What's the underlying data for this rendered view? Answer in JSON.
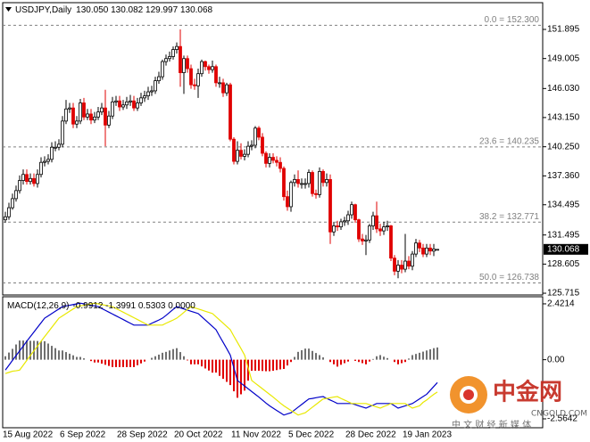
{
  "chart_data": [
    {
      "type": "candlestick",
      "title": "USDJPY,Daily",
      "header_values": "130.050 130.082 129.997 130.068",
      "categories": [
        "15 Aug 2022",
        null,
        null,
        null,
        null,
        null,
        null,
        null,
        null,
        null,
        null,
        null,
        null,
        null,
        null,
        null,
        "6 Sep 2022",
        null,
        null,
        null,
        null,
        null,
        null,
        null,
        null,
        null,
        null,
        null,
        null,
        null,
        null,
        null,
        "28 Sep 2022",
        null,
        null,
        null,
        null,
        null,
        null,
        null,
        null,
        null,
        null,
        null,
        null,
        null,
        null,
        null,
        "20 Oct 2022",
        null,
        null,
        null,
        null,
        null,
        null,
        null,
        null,
        null,
        null,
        null,
        null,
        null,
        null,
        null,
        "11 Nov 2022",
        null,
        null,
        null,
        null,
        null,
        null,
        null,
        null,
        null,
        null,
        null,
        null,
        null,
        null,
        null,
        "5 Dec 2022",
        null,
        null,
        null,
        null,
        null,
        null,
        null,
        null,
        null,
        null,
        null,
        null,
        null,
        null,
        null,
        "28 Dec 2022",
        null,
        null,
        null,
        null,
        null,
        null,
        null,
        null,
        null,
        null,
        null,
        null,
        null,
        null,
        null,
        "19 Jan 2023",
        null,
        null,
        null,
        null,
        null,
        null,
        null,
        null,
        null
      ],
      "open": [
        133.0,
        133.3,
        134.2,
        135.1,
        135.9,
        136.9,
        137.5,
        136.8,
        137.1,
        136.6,
        137.5,
        138.7,
        138.8,
        139.0,
        140.2,
        140.2,
        140.5,
        142.8,
        144.0,
        144.1,
        142.5,
        142.8,
        144.6,
        143.2,
        143.5,
        142.9,
        143.2,
        143.7,
        144.1,
        142.4,
        143.3,
        144.7,
        144.8,
        144.2,
        144.4,
        144.7,
        144.8,
        144.1,
        144.6,
        145.1,
        145.3,
        145.7,
        145.8,
        146.8,
        147.2,
        148.7,
        149.0,
        149.2,
        149.9,
        150.2,
        147.6,
        149.0,
        148.0,
        146.4,
        146.3,
        147.5,
        148.7,
        148.2,
        147.9,
        148.2,
        146.6,
        146.6,
        145.6,
        146.4,
        141.0,
        138.8,
        139.9,
        139.3,
        139.5,
        140.3,
        140.4,
        142.1,
        141.2,
        139.6,
        138.6,
        139.2,
        138.9,
        138.7,
        138.1,
        135.3,
        134.3,
        136.7,
        137.0,
        136.6,
        136.6,
        136.6,
        137.7,
        135.6,
        135.5,
        137.8,
        136.7,
        137.0,
        131.8,
        132.4,
        132.3,
        132.8,
        132.9,
        133.5,
        134.5,
        133.0,
        131.1,
        130.9,
        131.0,
        132.4,
        133.4,
        132.1,
        131.9,
        132.3,
        132.4,
        129.2,
        127.9,
        128.5,
        128.1,
        128.9,
        128.4,
        129.6,
        130.7,
        130.2,
        129.6,
        130.2,
        129.9,
        130.05
      ],
      "high": [
        133.8,
        134.7,
        135.6,
        136.4,
        137.4,
        138.0,
        138.0,
        137.6,
        137.6,
        138.0,
        139.2,
        139.3,
        139.5,
        140.7,
        140.8,
        141.0,
        143.3,
        144.9,
        144.6,
        144.6,
        143.3,
        145.0,
        145.1,
        144.0,
        144.0,
        143.7,
        144.2,
        144.6,
        145.9,
        143.8,
        145.2,
        145.3,
        145.3,
        144.9,
        145.2,
        145.4,
        145.3,
        145.1,
        145.6,
        145.8,
        146.2,
        146.3,
        147.2,
        147.7,
        148.9,
        149.4,
        149.7,
        150.2,
        150.6,
        151.9,
        149.3,
        149.3,
        148.4,
        147.0,
        148.0,
        148.9,
        148.8,
        148.4,
        148.8,
        148.4,
        147.2,
        147.0,
        146.6,
        146.6,
        141.2,
        140.8,
        140.6,
        140.0,
        140.8,
        140.9,
        142.3,
        142.3,
        141.6,
        139.8,
        139.6,
        139.6,
        139.3,
        139.2,
        138.3,
        135.9,
        136.9,
        137.5,
        137.9,
        137.1,
        137.1,
        138.0,
        137.9,
        136.0,
        138.2,
        138.0,
        137.6,
        137.5,
        132.8,
        132.9,
        133.1,
        133.3,
        133.9,
        134.8,
        134.6,
        133.1,
        131.6,
        131.5,
        132.6,
        133.8,
        134.8,
        132.6,
        132.8,
        132.9,
        132.5,
        129.5,
        129.0,
        129.0,
        131.6,
        129.4,
        129.9,
        131.1,
        131.0,
        130.6,
        130.6,
        130.6,
        130.6,
        130.082
      ],
      "low": [
        132.7,
        133.0,
        134.0,
        134.8,
        135.6,
        136.5,
        136.5,
        136.5,
        136.3,
        136.2,
        137.2,
        138.3,
        138.5,
        138.7,
        139.8,
        139.9,
        140.2,
        142.5,
        143.6,
        142.1,
        142.1,
        142.5,
        142.9,
        142.9,
        142.5,
        142.6,
        142.9,
        143.4,
        140.3,
        142.1,
        143.0,
        144.3,
        143.8,
        143.9,
        144.0,
        144.3,
        143.8,
        143.8,
        144.3,
        144.7,
        144.9,
        145.3,
        145.5,
        146.5,
        146.9,
        148.3,
        148.7,
        148.9,
        149.5,
        146.2,
        145.5,
        147.6,
        146.0,
        145.9,
        145.1,
        147.2,
        147.8,
        147.5,
        147.6,
        146.2,
        146.1,
        145.2,
        145.3,
        140.8,
        138.5,
        138.5,
        139.0,
        138.9,
        139.2,
        139.9,
        140.1,
        140.9,
        139.3,
        138.2,
        138.2,
        138.6,
        138.3,
        137.7,
        134.9,
        133.9,
        133.8,
        136.3,
        136.2,
        136.1,
        136.1,
        136.2,
        135.3,
        135.1,
        135.2,
        136.3,
        136.3,
        130.6,
        131.4,
        131.9,
        132.0,
        132.4,
        132.5,
        133.1,
        132.7,
        130.8,
        130.5,
        129.5,
        130.7,
        132.0,
        131.7,
        131.4,
        131.5,
        131.9,
        128.9,
        127.5,
        127.2,
        127.7,
        127.8,
        128.1,
        128.0,
        129.3,
        129.8,
        129.3,
        129.3,
        129.5,
        129.4,
        129.997
      ],
      "close": [
        133.3,
        134.2,
        135.1,
        135.9,
        136.9,
        137.5,
        136.8,
        137.1,
        136.6,
        137.5,
        138.7,
        138.8,
        139.0,
        140.2,
        140.2,
        140.5,
        142.8,
        144.0,
        144.1,
        142.5,
        142.8,
        144.6,
        143.2,
        143.5,
        142.9,
        143.2,
        143.7,
        144.1,
        142.4,
        143.3,
        144.7,
        144.8,
        144.2,
        144.4,
        144.7,
        144.8,
        144.1,
        144.6,
        145.1,
        145.3,
        145.7,
        145.8,
        146.8,
        147.2,
        148.7,
        149.0,
        149.2,
        149.9,
        150.2,
        147.6,
        149.0,
        148.0,
        146.4,
        146.3,
        147.5,
        148.7,
        148.2,
        147.9,
        148.2,
        146.6,
        146.6,
        145.6,
        146.4,
        141.0,
        138.8,
        139.9,
        139.3,
        139.5,
        140.3,
        140.4,
        142.1,
        141.2,
        139.6,
        138.6,
        139.2,
        138.9,
        138.7,
        138.1,
        135.3,
        134.3,
        136.7,
        137.0,
        136.6,
        136.6,
        136.6,
        137.7,
        135.6,
        135.5,
        137.8,
        136.7,
        137.0,
        131.8,
        132.4,
        132.3,
        132.8,
        132.9,
        133.5,
        134.5,
        133.0,
        131.1,
        130.9,
        131.0,
        132.4,
        133.4,
        132.1,
        131.9,
        132.3,
        132.4,
        129.2,
        127.9,
        128.5,
        128.1,
        128.9,
        128.4,
        129.6,
        130.7,
        130.2,
        129.6,
        130.2,
        129.9,
        130.1,
        130.068
      ],
      "up_color": "#ffffff",
      "down_color": "#e00000",
      "outline_color": "#000000",
      "ylim": [
        125.63,
        154.46
      ],
      "yticks": [
        151.895,
        149.005,
        {
          "value": 146.03,
          "label": "146.030"
        },
        {
          "value": 143.15,
          "label": "143.150"
        },
        {
          "value": 140.25,
          "label": "140.250"
        },
        {
          "value": 137.36,
          "label": "137.360"
        },
        134.495,
        131.495,
        128.605,
        125.715
      ],
      "fib_levels": [
        {
          "value": 152.3,
          "label": "0.0 = 152.300"
        },
        {
          "value": 140.235,
          "label": "23.6 = 140.235"
        },
        {
          "value": 132.771,
          "label": "38.2 = 132.771"
        },
        {
          "value": 126.738,
          "label": "50.0 = 126.738"
        }
      ],
      "fib_color": "#808080",
      "last_price_label": "130.068"
    },
    {
      "type": "macd",
      "title": "MACD(12,26,9)",
      "header_values": "-0.9912 -1.3991 0.5303 0.0000",
      "ylim": [
        -2.95,
        2.69
      ],
      "yticks": [
        2.4214,
        {
          "value": 0,
          "label": "0.00"
        },
        -2.5642
      ],
      "series": [
        {
          "color": "#0000c8",
          "values": [
            -0.45,
            -0.24,
            -0.03,
            0.18,
            0.38,
            0.59,
            0.8,
            1.0,
            1.2,
            1.4,
            1.6,
            1.8,
            1.9,
            2.0,
            2.1,
            2.2,
            2.3,
            2.33,
            2.36,
            2.39,
            2.42,
            2.45,
            2.42,
            2.39,
            2.36,
            2.33,
            2.3,
            2.22,
            2.14,
            2.06,
            1.98,
            1.9,
            1.82,
            1.74,
            1.66,
            1.58,
            1.5,
            1.5,
            1.5,
            1.5,
            1.5,
            1.58,
            1.65,
            1.72,
            1.8,
            1.92,
            2.05,
            2.18,
            2.3,
            2.25,
            2.2,
            2.15,
            2.1,
            2.05,
            2.0,
            1.86,
            1.72,
            1.58,
            1.44,
            1.3,
            1.02,
            0.75,
            0.48,
            0.2,
            -0.35,
            -0.9,
            -1.02,
            -1.14,
            -1.26,
            -1.38,
            -1.5,
            -1.62,
            -1.75,
            -1.88,
            -2.0,
            -2.1,
            -2.2,
            -2.3,
            -2.4,
            -2.35,
            -2.3,
            -2.18,
            -2.06,
            -1.94,
            -1.82,
            -1.7,
            -1.68,
            -1.65,
            -1.62,
            -1.6,
            -1.68,
            -1.75,
            -1.82,
            -1.9,
            -1.9,
            -1.9,
            -1.9,
            -1.9,
            -1.95,
            -2.0,
            -2.05,
            -2.1,
            -2.03,
            -1.97,
            -1.9,
            -1.9,
            -1.9,
            -1.9,
            -1.9,
            -2.0,
            -2.1,
            -2.05,
            -2.0,
            -1.95,
            -1.9,
            -1.8,
            -1.7,
            -1.6,
            -1.5,
            -1.33,
            -1.16,
            -0.9912
          ]
        },
        {
          "color": "#e8e800",
          "values": [
            -0.6,
            -0.55,
            -0.5,
            -0.48,
            -0.45,
            -0.24,
            -0.03,
            0.18,
            0.38,
            0.59,
            0.8,
            1.0,
            1.2,
            1.4,
            1.6,
            1.8,
            1.9,
            2.0,
            2.1,
            2.2,
            2.3,
            2.33,
            2.36,
            2.39,
            2.42,
            2.45,
            2.42,
            2.39,
            2.36,
            2.33,
            2.3,
            2.22,
            2.14,
            2.06,
            1.98,
            1.9,
            1.82,
            1.74,
            1.66,
            1.58,
            1.5,
            1.5,
            1.5,
            1.5,
            1.5,
            1.58,
            1.65,
            1.72,
            1.8,
            1.92,
            2.05,
            2.18,
            2.3,
            2.25,
            2.2,
            2.15,
            2.1,
            2.05,
            2.0,
            1.86,
            1.72,
            1.58,
            1.44,
            1.3,
            1.02,
            0.75,
            0.48,
            0.2,
            -0.35,
            -0.9,
            -1.02,
            -1.14,
            -1.26,
            -1.38,
            -1.5,
            -1.62,
            -1.75,
            -1.88,
            -2.0,
            -2.1,
            -2.2,
            -2.3,
            -2.4,
            -2.35,
            -2.3,
            -2.18,
            -2.06,
            -1.94,
            -1.82,
            -1.7,
            -1.68,
            -1.65,
            -1.62,
            -1.6,
            -1.68,
            -1.75,
            -1.82,
            -1.9,
            -1.9,
            -1.9,
            -1.9,
            -1.9,
            -1.95,
            -2.0,
            -2.05,
            -2.1,
            -2.03,
            -1.97,
            -1.9,
            -1.9,
            -1.9,
            -1.9,
            -1.9,
            -2.0,
            -2.1,
            -2.05,
            -2.0,
            -1.85,
            -1.75,
            -1.62,
            -1.5,
            -1.3991
          ]
        }
      ],
      "histogram": {
        "up_color": "#707070",
        "down_color": "#e00000",
        "values": [
          0.15,
          0.31,
          0.47,
          0.66,
          0.83,
          0.83,
          0.83,
          0.82,
          0.82,
          0.81,
          0.8,
          0.8,
          0.7,
          0.6,
          0.5,
          0.4,
          0.4,
          0.33,
          0.26,
          0.19,
          0.12,
          0.12,
          0.06,
          0,
          -0.06,
          -0.12,
          -0.12,
          -0.17,
          -0.22,
          -0.27,
          -0.32,
          -0.32,
          -0.32,
          -0.32,
          -0.32,
          -0.32,
          -0.32,
          -0.24,
          -0.16,
          -0.08,
          0,
          0.08,
          0.15,
          0.22,
          0.3,
          0.34,
          0.4,
          0.46,
          0.5,
          0.33,
          0.15,
          -0.03,
          -0.2,
          -0.2,
          -0.2,
          -0.29,
          -0.38,
          -0.47,
          -0.56,
          -0.56,
          -0.7,
          -0.83,
          -0.96,
          -1.1,
          -1.37,
          -1.65,
          -1.5,
          -1.34,
          -0.91,
          -0.48,
          -0.48,
          -0.48,
          -0.49,
          -0.5,
          -0.5,
          -0.48,
          -0.45,
          -0.42,
          -0.4,
          -0.25,
          -0.1,
          0.12,
          0.34,
          0.41,
          0.48,
          0.48,
          0.38,
          0.29,
          0.2,
          0.1,
          0,
          -0.1,
          -0.2,
          -0.3,
          -0.22,
          -0.15,
          -0.08,
          0,
          -0.05,
          -0.1,
          -0.15,
          -0.2,
          -0.08,
          0.03,
          0.15,
          0.2,
          0.13,
          0.07,
          0,
          -0.1,
          -0.2,
          -0.15,
          -0.1,
          0.05,
          0.2,
          0.25,
          0.3,
          0.35,
          0.4,
          0.45,
          0.5,
          0.5303
        ]
      }
    }
  ],
  "watermark": {
    "name": "中金网",
    "site": "CNGOLD.COM",
    "slogan": "中 文 财 经 新 媒 体"
  }
}
